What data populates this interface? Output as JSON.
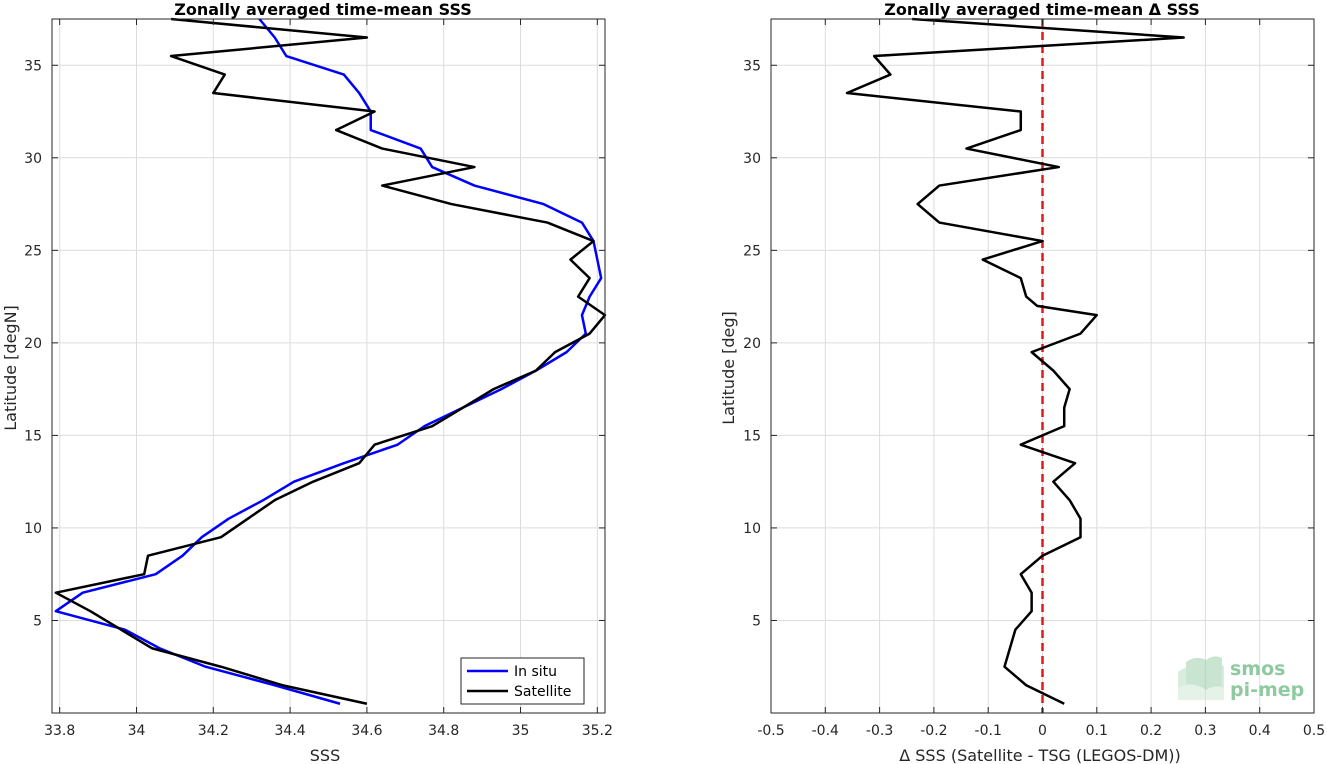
{
  "chart_data": [
    {
      "type": "line",
      "title": "Zonally averaged time-mean SSS",
      "xlabel": "SSS",
      "ylabel": "Latitude [degN]",
      "xlim": [
        33.78,
        35.22
      ],
      "ylim": [
        0,
        37.5
      ],
      "x_ticks": [
        {
          "v": 33.8,
          "label": "33.8"
        },
        {
          "v": 34,
          "label": "34"
        },
        {
          "v": 34.2,
          "label": "34.2"
        },
        {
          "v": 34.4,
          "label": "34.4"
        },
        {
          "v": 34.6,
          "label": "34.6"
        },
        {
          "v": 34.8,
          "label": "34.8"
        },
        {
          "v": 35,
          "label": "35"
        },
        {
          "v": 35.2,
          "label": "35.2"
        }
      ],
      "y_ticks": [
        {
          "v": 5,
          "label": "5"
        },
        {
          "v": 10,
          "label": "10"
        },
        {
          "v": 15,
          "label": "15"
        },
        {
          "v": 20,
          "label": "20"
        },
        {
          "v": 25,
          "label": "25"
        },
        {
          "v": 30,
          "label": "30"
        },
        {
          "v": 35,
          "label": "35"
        }
      ],
      "grid": true,
      "legend": "bottom-right",
      "series": [
        {
          "name": "In situ",
          "color": "#0000ff",
          "points": [
            [
              34.32,
              37.5
            ],
            [
              34.36,
              36.5
            ],
            [
              34.39,
              35.5
            ],
            [
              34.54,
              34.5
            ],
            [
              34.58,
              33.5
            ],
            [
              34.61,
              32.5
            ],
            [
              34.61,
              31.5
            ],
            [
              34.74,
              30.5
            ],
            [
              34.77,
              29.5
            ],
            [
              34.88,
              28.5
            ],
            [
              35.06,
              27.5
            ],
            [
              35.16,
              26.5
            ],
            [
              35.19,
              25.5
            ],
            [
              35.2,
              24.5
            ],
            [
              35.21,
              23.5
            ],
            [
              35.18,
              22.5
            ],
            [
              35.16,
              21.5
            ],
            [
              35.17,
              20.5
            ],
            [
              35.12,
              19.5
            ],
            [
              35.04,
              18.5
            ],
            [
              34.95,
              17.5
            ],
            [
              34.85,
              16.5
            ],
            [
              34.75,
              15.5
            ],
            [
              34.68,
              14.5
            ],
            [
              34.54,
              13.5
            ],
            [
              34.41,
              12.5
            ],
            [
              34.33,
              11.5
            ],
            [
              34.24,
              10.5
            ],
            [
              34.17,
              9.5
            ],
            [
              34.12,
              8.5
            ],
            [
              34.05,
              7.5
            ],
            [
              33.86,
              6.5
            ],
            [
              33.79,
              5.5
            ],
            [
              33.97,
              4.5
            ],
            [
              34.06,
              3.5
            ],
            [
              34.18,
              2.5
            ],
            [
              34.36,
              1.5
            ],
            [
              34.53,
              0.5
            ]
          ]
        },
        {
          "name": "Satellite",
          "color": "#000000",
          "points": [
            [
              34.09,
              37.5
            ],
            [
              34.6,
              36.5
            ],
            [
              34.09,
              35.5
            ],
            [
              34.23,
              34.5
            ],
            [
              34.2,
              33.5
            ],
            [
              34.62,
              32.5
            ],
            [
              34.52,
              31.5
            ],
            [
              34.64,
              30.5
            ],
            [
              34.88,
              29.5
            ],
            [
              34.64,
              28.5
            ],
            [
              34.82,
              27.5
            ],
            [
              35.07,
              26.5
            ],
            [
              35.19,
              25.5
            ],
            [
              35.13,
              24.5
            ],
            [
              35.18,
              23.5
            ],
            [
              35.15,
              22.5
            ],
            [
              35.22,
              21.5
            ],
            [
              35.18,
              20.5
            ],
            [
              35.09,
              19.5
            ],
            [
              35.04,
              18.5
            ],
            [
              34.93,
              17.5
            ],
            [
              34.85,
              16.5
            ],
            [
              34.77,
              15.5
            ],
            [
              34.62,
              14.5
            ],
            [
              34.58,
              13.5
            ],
            [
              34.46,
              12.5
            ],
            [
              34.36,
              11.5
            ],
            [
              34.29,
              10.5
            ],
            [
              34.22,
              9.5
            ],
            [
              34.03,
              8.5
            ],
            [
              34.02,
              7.5
            ],
            [
              33.79,
              6.5
            ],
            [
              33.88,
              5.5
            ],
            [
              33.96,
              4.5
            ],
            [
              34.04,
              3.5
            ],
            [
              34.22,
              2.5
            ],
            [
              34.38,
              1.5
            ],
            [
              34.6,
              0.5
            ]
          ]
        }
      ]
    },
    {
      "type": "line",
      "title": "Zonally averaged time-mean Δ SSS",
      "xlabel": "Δ SSS (Satellite - TSG (LEGOS-DM))",
      "ylabel": "Latitude [deg]",
      "xlim": [
        -0.5,
        0.5
      ],
      "ylim": [
        0,
        37.5
      ],
      "x_ticks": [
        {
          "v": -0.5,
          "label": "-0.5"
        },
        {
          "v": -0.4,
          "label": "-0.4"
        },
        {
          "v": -0.3,
          "label": "-0.3"
        },
        {
          "v": -0.2,
          "label": "-0.2"
        },
        {
          "v": -0.1,
          "label": "-0.1"
        },
        {
          "v": 0,
          "label": "0"
        },
        {
          "v": 0.1,
          "label": "0.1"
        },
        {
          "v": 0.2,
          "label": "0.2"
        },
        {
          "v": 0.3,
          "label": "0.3"
        },
        {
          "v": 0.4,
          "label": "0.4"
        },
        {
          "v": 0.5,
          "label": "0.5"
        }
      ],
      "y_ticks": [
        {
          "v": 5,
          "label": "5"
        },
        {
          "v": 10,
          "label": "10"
        },
        {
          "v": 15,
          "label": "15"
        },
        {
          "v": 20,
          "label": "20"
        },
        {
          "v": 25,
          "label": "25"
        },
        {
          "v": 30,
          "label": "30"
        },
        {
          "v": 35,
          "label": "35"
        }
      ],
      "grid": true,
      "reference_line": {
        "x": 0,
        "color": "#e31a1c",
        "style": "dashed"
      },
      "series": [
        {
          "color": "#000000",
          "points": [
            [
              -0.24,
              37.5
            ],
            [
              0.26,
              36.5
            ],
            [
              -0.31,
              35.5
            ],
            [
              -0.28,
              34.5
            ],
            [
              -0.36,
              33.5
            ],
            [
              -0.04,
              32.5
            ],
            [
              -0.04,
              31.5
            ],
            [
              -0.14,
              30.5
            ],
            [
              0.03,
              29.5
            ],
            [
              -0.19,
              28.5
            ],
            [
              -0.23,
              27.5
            ],
            [
              -0.19,
              26.5
            ],
            [
              0,
              25.5
            ],
            [
              -0.11,
              24.5
            ],
            [
              -0.04,
              23.5
            ],
            [
              -0.03,
              22.5
            ],
            [
              -0.01,
              22.0
            ],
            [
              0.1,
              21.5
            ],
            [
              0.07,
              20.5
            ],
            [
              -0.02,
              19.5
            ],
            [
              0.02,
              18.5
            ],
            [
              0.05,
              17.5
            ],
            [
              0.04,
              16.5
            ],
            [
              0.04,
              15.5
            ],
            [
              -0.04,
              14.5
            ],
            [
              0.06,
              13.5
            ],
            [
              0.02,
              12.5
            ],
            [
              0.05,
              11.5
            ],
            [
              0.07,
              10.5
            ],
            [
              0.07,
              9.5
            ],
            [
              0,
              8.5
            ],
            [
              -0.04,
              7.5
            ],
            [
              -0.02,
              6.5
            ],
            [
              -0.02,
              5.5
            ],
            [
              -0.05,
              4.5
            ],
            [
              -0.06,
              3.5
            ],
            [
              -0.07,
              2.5
            ],
            [
              -0.03,
              1.5
            ],
            [
              0.04,
              0.5
            ]
          ]
        }
      ]
    }
  ],
  "legend": {
    "items": [
      {
        "label": "In situ",
        "color": "#0000ff"
      },
      {
        "label": "Satellite",
        "color": "#000000"
      }
    ]
  },
  "logo": {
    "line1": "smos",
    "line2": "pi-mep",
    "color": "#8fc9a0"
  }
}
